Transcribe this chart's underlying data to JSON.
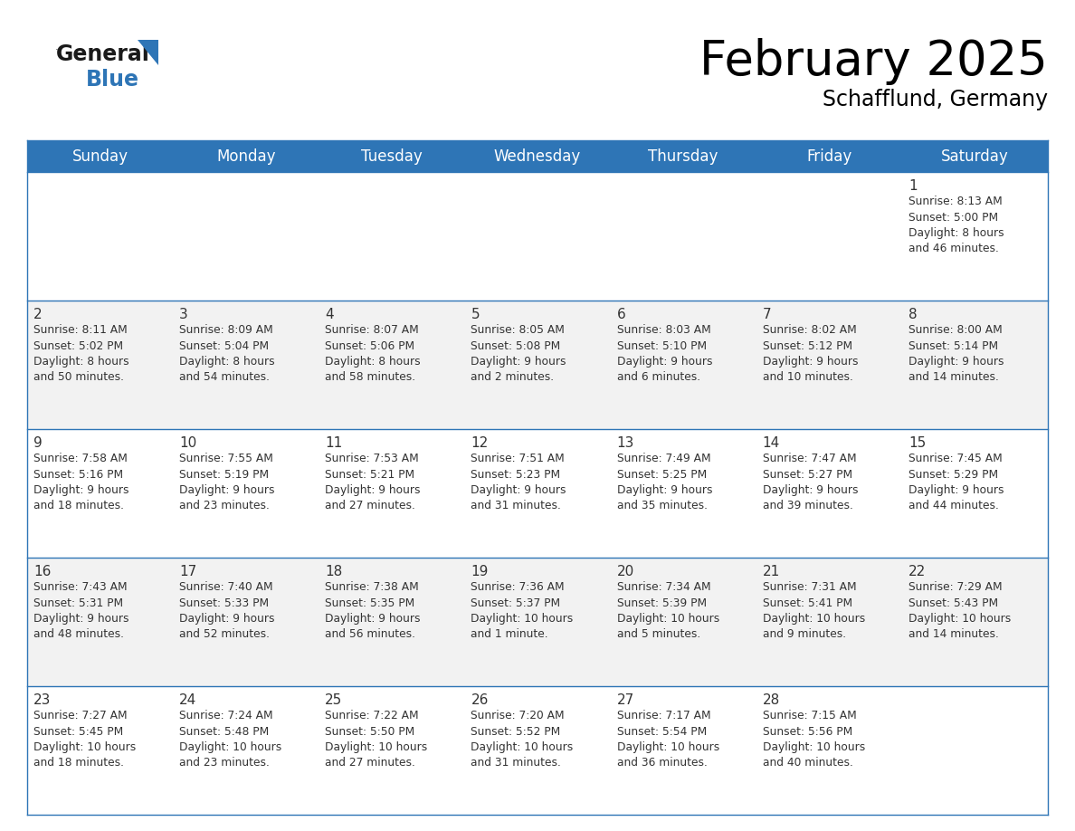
{
  "title": "February 2025",
  "subtitle": "Schafflund, Germany",
  "header_bg": "#2e75b6",
  "header_text_color": "#ffffff",
  "cell_bg_white": "#ffffff",
  "cell_bg_light": "#f2f2f2",
  "border_color": "#2e75b6",
  "text_color": "#333333",
  "day_names": [
    "Sunday",
    "Monday",
    "Tuesday",
    "Wednesday",
    "Thursday",
    "Friday",
    "Saturday"
  ],
  "weeks": [
    [
      {
        "day": null,
        "info": null
      },
      {
        "day": null,
        "info": null
      },
      {
        "day": null,
        "info": null
      },
      {
        "day": null,
        "info": null
      },
      {
        "day": null,
        "info": null
      },
      {
        "day": null,
        "info": null
      },
      {
        "day": "1",
        "info": "Sunrise: 8:13 AM\nSunset: 5:00 PM\nDaylight: 8 hours\nand 46 minutes."
      }
    ],
    [
      {
        "day": "2",
        "info": "Sunrise: 8:11 AM\nSunset: 5:02 PM\nDaylight: 8 hours\nand 50 minutes."
      },
      {
        "day": "3",
        "info": "Sunrise: 8:09 AM\nSunset: 5:04 PM\nDaylight: 8 hours\nand 54 minutes."
      },
      {
        "day": "4",
        "info": "Sunrise: 8:07 AM\nSunset: 5:06 PM\nDaylight: 8 hours\nand 58 minutes."
      },
      {
        "day": "5",
        "info": "Sunrise: 8:05 AM\nSunset: 5:08 PM\nDaylight: 9 hours\nand 2 minutes."
      },
      {
        "day": "6",
        "info": "Sunrise: 8:03 AM\nSunset: 5:10 PM\nDaylight: 9 hours\nand 6 minutes."
      },
      {
        "day": "7",
        "info": "Sunrise: 8:02 AM\nSunset: 5:12 PM\nDaylight: 9 hours\nand 10 minutes."
      },
      {
        "day": "8",
        "info": "Sunrise: 8:00 AM\nSunset: 5:14 PM\nDaylight: 9 hours\nand 14 minutes."
      }
    ],
    [
      {
        "day": "9",
        "info": "Sunrise: 7:58 AM\nSunset: 5:16 PM\nDaylight: 9 hours\nand 18 minutes."
      },
      {
        "day": "10",
        "info": "Sunrise: 7:55 AM\nSunset: 5:19 PM\nDaylight: 9 hours\nand 23 minutes."
      },
      {
        "day": "11",
        "info": "Sunrise: 7:53 AM\nSunset: 5:21 PM\nDaylight: 9 hours\nand 27 minutes."
      },
      {
        "day": "12",
        "info": "Sunrise: 7:51 AM\nSunset: 5:23 PM\nDaylight: 9 hours\nand 31 minutes."
      },
      {
        "day": "13",
        "info": "Sunrise: 7:49 AM\nSunset: 5:25 PM\nDaylight: 9 hours\nand 35 minutes."
      },
      {
        "day": "14",
        "info": "Sunrise: 7:47 AM\nSunset: 5:27 PM\nDaylight: 9 hours\nand 39 minutes."
      },
      {
        "day": "15",
        "info": "Sunrise: 7:45 AM\nSunset: 5:29 PM\nDaylight: 9 hours\nand 44 minutes."
      }
    ],
    [
      {
        "day": "16",
        "info": "Sunrise: 7:43 AM\nSunset: 5:31 PM\nDaylight: 9 hours\nand 48 minutes."
      },
      {
        "day": "17",
        "info": "Sunrise: 7:40 AM\nSunset: 5:33 PM\nDaylight: 9 hours\nand 52 minutes."
      },
      {
        "day": "18",
        "info": "Sunrise: 7:38 AM\nSunset: 5:35 PM\nDaylight: 9 hours\nand 56 minutes."
      },
      {
        "day": "19",
        "info": "Sunrise: 7:36 AM\nSunset: 5:37 PM\nDaylight: 10 hours\nand 1 minute."
      },
      {
        "day": "20",
        "info": "Sunrise: 7:34 AM\nSunset: 5:39 PM\nDaylight: 10 hours\nand 5 minutes."
      },
      {
        "day": "21",
        "info": "Sunrise: 7:31 AM\nSunset: 5:41 PM\nDaylight: 10 hours\nand 9 minutes."
      },
      {
        "day": "22",
        "info": "Sunrise: 7:29 AM\nSunset: 5:43 PM\nDaylight: 10 hours\nand 14 minutes."
      }
    ],
    [
      {
        "day": "23",
        "info": "Sunrise: 7:27 AM\nSunset: 5:45 PM\nDaylight: 10 hours\nand 18 minutes."
      },
      {
        "day": "24",
        "info": "Sunrise: 7:24 AM\nSunset: 5:48 PM\nDaylight: 10 hours\nand 23 minutes."
      },
      {
        "day": "25",
        "info": "Sunrise: 7:22 AM\nSunset: 5:50 PM\nDaylight: 10 hours\nand 27 minutes."
      },
      {
        "day": "26",
        "info": "Sunrise: 7:20 AM\nSunset: 5:52 PM\nDaylight: 10 hours\nand 31 minutes."
      },
      {
        "day": "27",
        "info": "Sunrise: 7:17 AM\nSunset: 5:54 PM\nDaylight: 10 hours\nand 36 minutes."
      },
      {
        "day": "28",
        "info": "Sunrise: 7:15 AM\nSunset: 5:56 PM\nDaylight: 10 hours\nand 40 minutes."
      },
      {
        "day": null,
        "info": null
      }
    ]
  ],
  "logo_color_black": "#1a1a1a",
  "logo_color_blue": "#2e75b6",
  "title_fontsize": 38,
  "subtitle_fontsize": 17,
  "header_fontsize": 12,
  "day_num_fontsize": 11,
  "info_fontsize": 8.8
}
